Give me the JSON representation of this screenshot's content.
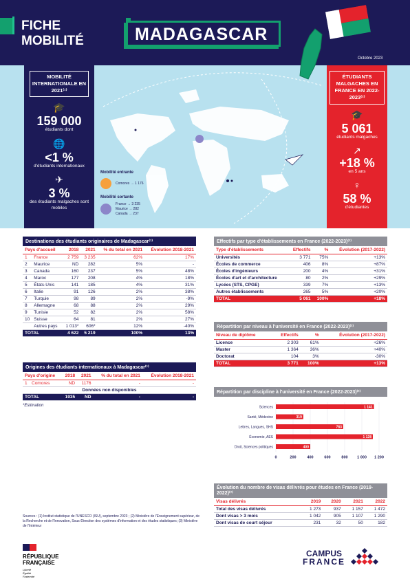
{
  "header": {
    "fiche": "FICHE MOBILITÉ",
    "country": "MADAGASCAR",
    "date": "Octobre 2023"
  },
  "left": {
    "label": "MOBILITÉ INTERNATIONALE EN 2021⁽¹⁾",
    "stat1_value": "159 000",
    "stat1_text": "étudiants dont",
    "stat2_value": "<1 %",
    "stat2_text": "d'étudiants internationaux",
    "stat3_value": "3 %",
    "stat3_text": "des étudiants malgaches sont mobiles"
  },
  "map": {
    "entrante_title": "Mobilité entrante",
    "entrante_items": [
      "Comores → 1 176"
    ],
    "sortante_title": "Mobilité sortante",
    "sortante_items": [
      "France → 3 235",
      "Maurice → 282",
      "Canada → 237"
    ]
  },
  "right": {
    "label": "ÉTUDIANTS MALGACHES EN FRANCE EN 2022-2023⁽²⁾",
    "stat1_value": "5 061",
    "stat1_text": "étudiants malgaches",
    "stat2_value": "+18 %",
    "stat2_text": "en 5 ans",
    "stat3_value": "58 %",
    "stat3_text": "d'étudiantes"
  },
  "destinations": {
    "title": "Destinations des étudiants originaires de Madagascar⁽¹⁾",
    "headers": [
      "Pays d'accueil",
      "2018",
      "2021",
      "% du total en 2021",
      "Évolution 2018-2021"
    ],
    "rows": [
      [
        "1",
        "France",
        "2 759",
        "3 235",
        "62%",
        "17%"
      ],
      [
        "2",
        "Maurice",
        "ND",
        "282",
        "5%",
        "-"
      ],
      [
        "3",
        "Canada",
        "160",
        "237",
        "5%",
        "48%"
      ],
      [
        "4",
        "Maroc",
        "177",
        "208",
        "4%",
        "18%"
      ],
      [
        "5",
        "États-Unis",
        "141",
        "185",
        "4%",
        "31%"
      ],
      [
        "6",
        "Italie",
        "91",
        "126",
        "2%",
        "38%"
      ],
      [
        "7",
        "Turquie",
        "98",
        "89",
        "2%",
        "-9%"
      ],
      [
        "8",
        "Allemagne",
        "68",
        "88",
        "2%",
        "29%"
      ],
      [
        "9",
        "Tunisie",
        "52",
        "82",
        "2%",
        "58%"
      ],
      [
        "10",
        "Suisse",
        "64",
        "81",
        "2%",
        "27%"
      ],
      [
        "",
        "Autres pays",
        "1 013*",
        "606*",
        "12%",
        "-40%"
      ]
    ],
    "total": [
      "TOTAL",
      "4 622",
      "5 219",
      "100%",
      "13%"
    ]
  },
  "origines": {
    "title": "Origines des étudiants internationaux à Madagascar⁽¹⁾",
    "headers": [
      "Pays d'origine",
      "2018",
      "2021",
      "% du total en 2021",
      "Évolution 2018-2021"
    ],
    "rows": [
      [
        "1",
        "Comores",
        "ND",
        "1176",
        "-",
        "-"
      ]
    ],
    "note_row": "Données non disponibles",
    "total": [
      "TOTAL",
      "1935",
      "ND",
      "-",
      "-"
    ],
    "estimation": "*Estimation"
  },
  "effectifs": {
    "title": "Effectifs par type d'établissements en France (2022-2023)⁽²⁾",
    "headers": [
      "Type d'établissements",
      "Effectifs",
      "%",
      "Évolution (2017-2022)"
    ],
    "rows": [
      [
        "Universités",
        "3 771",
        "75%",
        "+13%"
      ],
      [
        "Écoles de commerce",
        "406",
        "8%",
        "+87%"
      ],
      [
        "Écoles d'ingénieurs",
        "200",
        "4%",
        "+31%"
      ],
      [
        "Écoles d'art et d'architecture",
        "80",
        "2%",
        "+29%"
      ],
      [
        "Lycées (STS, CPGE)",
        "339",
        "7%",
        "+13%"
      ],
      [
        "Autres établissements",
        "265",
        "5%",
        "+20%"
      ]
    ],
    "total": [
      "TOTAL",
      "5 061",
      "100%",
      "+18%"
    ]
  },
  "niveau": {
    "title": "Répartition par niveau à l'université en France (2022-2023)⁽²⁾",
    "headers": [
      "Niveau de diplôme",
      "Effectifs",
      "%",
      "Évolution (2017-2022)"
    ],
    "rows": [
      [
        "Licence",
        "2 303",
        "61%",
        "+26%"
      ],
      [
        "Master",
        "1 364",
        "36%",
        "+40%"
      ],
      [
        "Doctorat",
        "104",
        "3%",
        "-30%"
      ]
    ],
    "total": [
      "TOTAL",
      "3 771",
      "100%",
      "+13%"
    ]
  },
  "chart_data": {
    "type": "bar",
    "title": "Répartition par discipline à l'université en France (2022-2023)⁽²⁾",
    "categories": [
      "Sciences",
      "Santé, Médecine",
      "Lettres, Langues, SHS",
      "Économie, AES",
      "Droit, Sciences politiques"
    ],
    "values": [
      1141,
      319,
      783,
      1128,
      400
    ],
    "xlim": [
      0,
      1200
    ],
    "xticks": [
      "0",
      "200",
      "400",
      "600",
      "800",
      "1 000",
      "1 200"
    ],
    "color": "#e4232c"
  },
  "visas": {
    "title": "Évolution du nombre de visas délivrés pour études en France (2019-2022)⁽³⁾",
    "headers": [
      "Visas délivrés",
      "2019",
      "2020",
      "2021",
      "2022"
    ],
    "rows": [
      [
        "Total des visas délivrés",
        "1 273",
        "937",
        "1 157",
        "1 472"
      ],
      [
        "Dont visas > 3 mois",
        "1 042",
        "905",
        "1 107",
        "1 290"
      ],
      [
        "Dont visas de court séjour",
        "231",
        "32",
        "50",
        "182"
      ]
    ]
  },
  "sources": "Sources : (1) Institut statistique de l'UNESCO (ISU), septembre 2023 ; (2) Ministère de l'Enseignement supérieur, de la Recherche et de l'Innovation, Sous-Direction des systèmes d'information et des études statistiques; (3) Ministère de l'Intérieur",
  "republique": {
    "line1": "RÉPUBLIQUE",
    "line2": "FRANÇAISE",
    "motto": "Liberté Égalité Fraternité"
  },
  "campus": {
    "line1": "CAMPUS",
    "line2": "FRANCE"
  }
}
